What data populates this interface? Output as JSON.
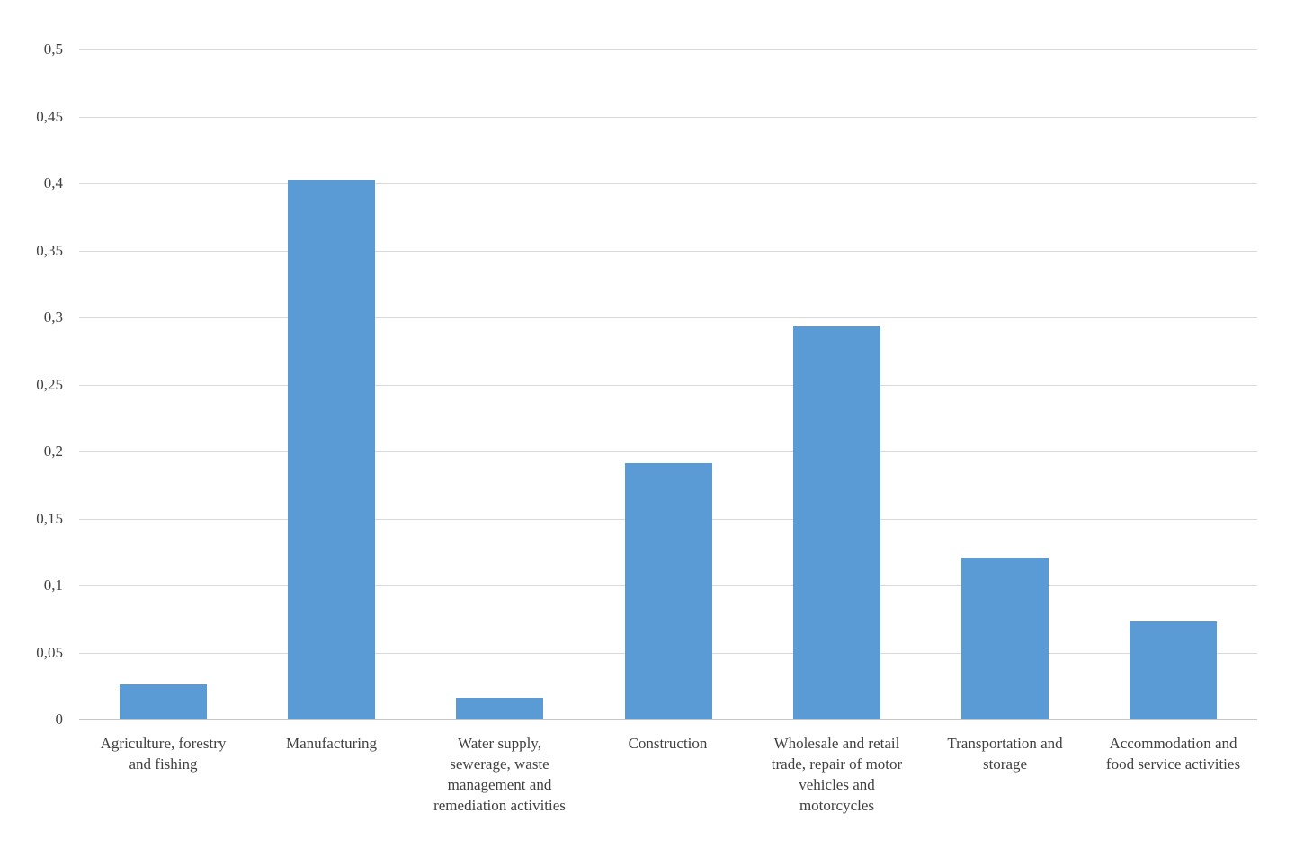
{
  "chart_data": {
    "type": "bar",
    "title": "",
    "xlabel": "",
    "ylabel": "",
    "categories": [
      "Agriculture, forestry and fishing",
      "Manufacturing",
      "Water supply, sewerage, waste management and remediation activities",
      "Construction",
      "Wholesale and retail trade, repair of motor vehicles and motorcycles",
      "Transportation and storage",
      "Accommodation and food service activities"
    ],
    "category_label_lines": [
      [
        "Agriculture, forestry",
        "and fishing"
      ],
      [
        "Manufacturing"
      ],
      [
        "Water supply,",
        "sewerage, waste",
        "management and",
        "remediation activities"
      ],
      [
        "Construction"
      ],
      [
        "Wholesale and retail",
        "trade, repair of motor",
        "vehicles and",
        "motorcycles"
      ],
      [
        "Transportation and",
        "storage"
      ],
      [
        "Accommodation and",
        "food service activities"
      ]
    ],
    "values": [
      0.026,
      0.403,
      0.016,
      0.191,
      0.293,
      0.121,
      0.073
    ],
    "ylim": [
      0,
      0.5
    ],
    "ytick_step": 0.05,
    "ytick_labels": [
      "0",
      "0,05",
      "0,1",
      "0,15",
      "0,2",
      "0,25",
      "0,3",
      "0,35",
      "0,4",
      "0,45",
      "0,5"
    ],
    "decimal_separator": ",",
    "grid": true,
    "legend_position": "none",
    "colors": {
      "bar": "#5B9BD5",
      "gridline": "#D9D9D9",
      "axis_line": "#C6C6C6",
      "text": "#404040",
      "background": "#FFFFFF"
    }
  }
}
